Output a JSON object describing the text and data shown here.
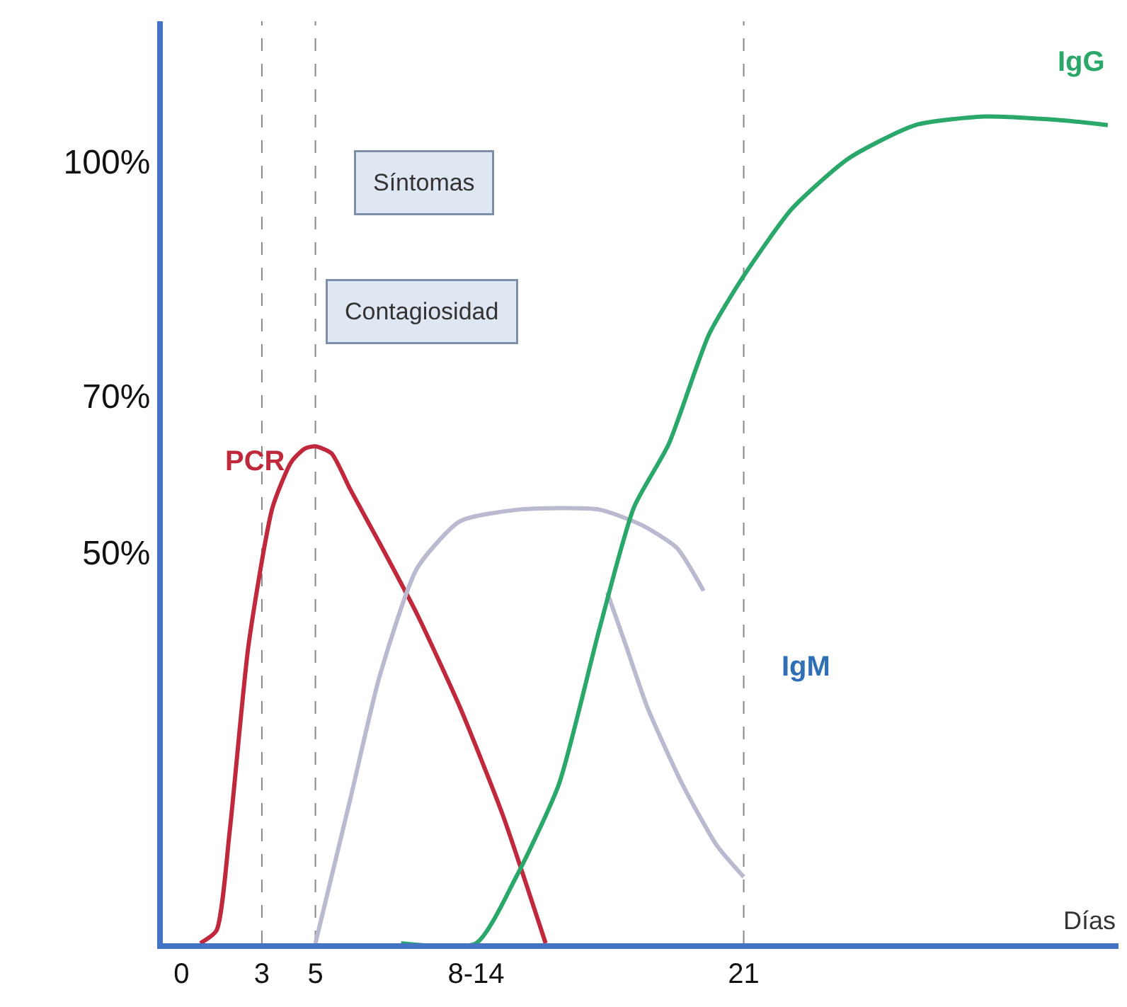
{
  "chart_data": {
    "type": "line",
    "xlabel": "Días",
    "x": [
      0.7,
      1.3,
      1.8,
      2.5,
      3.4,
      4.1,
      4.6,
      5.0,
      5.6,
      6.3,
      7.4,
      8.8,
      10.4,
      12.0,
      13.6
    ],
    "series": [
      {
        "name": "PCR",
        "color": "#c0283c",
        "values": [
          0,
          1.6,
          14.4,
          38.1,
          55.8,
          61.6,
          63.3,
          63.6,
          62.7,
          58.1,
          51.2,
          42.1,
          30.2,
          16.4,
          0
        ]
      },
      {
        "color": "#b9b9d0",
        "x": [
          5.0,
          6.3,
          7.4,
          8.8,
          10.4,
          12.6,
          15.6,
          17.2,
          18.5,
          19.5
        ],
        "values": [
          0,
          18.4,
          34.2,
          48.0,
          54.0,
          55.5,
          55.5,
          53.5,
          50.6,
          45.1
        ]
      },
      {
        "color": "#b9b9d0",
        "x": [
          15.9,
          16.6,
          17.4,
          18.7,
          20.0,
          21.0
        ],
        "values": [
          44.9,
          38.1,
          30.2,
          20.4,
          12.5,
          8.5
        ]
      },
      {
        "name": "IgG",
        "color": "#2aa86a",
        "x": [
          8.2,
          11,
          12.5,
          14.1,
          15.6,
          16.9,
          18.2,
          19.7,
          21,
          22.8,
          24.9,
          27.4,
          30,
          33,
          34.6
        ],
        "values": [
          0,
          0,
          8.5,
          20.4,
          40.1,
          55.8,
          63.9,
          77.9,
          85.4,
          94.0,
          100.4,
          104.7,
          105.8,
          105.3,
          104.7
        ]
      }
    ],
    "annotations": [
      "Síntomas",
      "Contagiosidad",
      "IgM"
    ],
    "xlim": [
      -0.7,
      35
    ],
    "ylim": [
      0,
      118
    ],
    "xticks": [
      0,
      3,
      5,
      {
        "value": 11,
        "label": "8-14"
      },
      21
    ],
    "yticks": [
      {
        "value": 50,
        "label": "50%"
      },
      {
        "value": 70,
        "label": "70%"
      },
      {
        "value": 100,
        "label": "100%"
      }
    ],
    "ref_lines": [
      {
        "axis": "x",
        "value": 3,
        "color": "#888888",
        "line_style": "dashed"
      },
      {
        "axis": "x",
        "value": 5,
        "color": "#888888",
        "line_style": "dashed"
      },
      {
        "axis": "x",
        "value": 21,
        "color": "#888888",
        "line_style": "dashed"
      }
    ],
    "grid": false,
    "marker": "none",
    "line_style": "solid"
  }
}
